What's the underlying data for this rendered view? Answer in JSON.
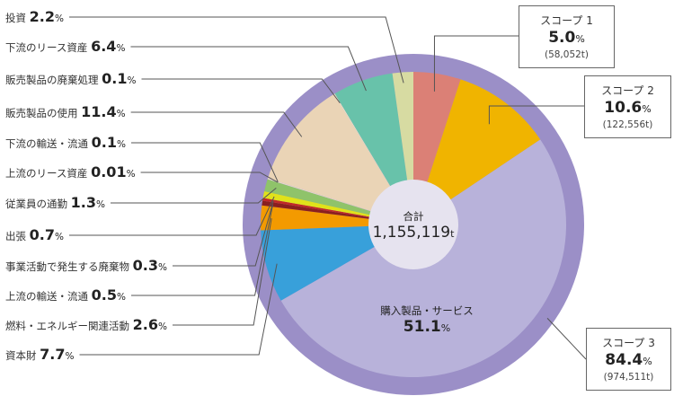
{
  "chart_data": {
    "type": "pie",
    "total": {
      "label": "合計",
      "value": "1,155,119",
      "unit": "t"
    },
    "scopes": [
      {
        "id": "scope1",
        "title": "スコープ 1",
        "percent": "5.0",
        "unit": "%",
        "amount": "(58,052t)",
        "value": 5.0,
        "color": "#db8076"
      },
      {
        "id": "scope2",
        "title": "スコープ 2",
        "percent": "10.6",
        "unit": "%",
        "amount": "(122,556t)",
        "value": 10.6,
        "color": "#f0b400"
      },
      {
        "id": "scope3",
        "title": "スコープ 3",
        "percent": "84.4",
        "unit": "%",
        "amount": "(974,511t)",
        "value": 84.4,
        "color": "#9b8fc7"
      }
    ],
    "scope3_categories": [
      {
        "name": "投資",
        "percent": "2.2",
        "unit": "%",
        "value": 2.2,
        "color": "#d7dba2"
      },
      {
        "name": "下流のリース資産",
        "percent": "6.4",
        "unit": "%",
        "value": 6.4,
        "color": "#68c2aa"
      },
      {
        "name": "販売製品の廃棄処理",
        "percent": "0.1",
        "unit": "%",
        "value": 0.1,
        "color": "#f3e3c8"
      },
      {
        "name": "販売製品の使用",
        "percent": "11.4",
        "unit": "%",
        "value": 11.4,
        "color": "#ead4b6"
      },
      {
        "name": "下流の輸送・流通",
        "percent": "0.1",
        "unit": "%",
        "value": 0.1,
        "color": "#e8d9d0"
      },
      {
        "name": "上流のリース資産",
        "percent": "0.01",
        "unit": "%",
        "value": 0.01,
        "color": "#cfcfcf"
      },
      {
        "name": "従業員の通勤",
        "percent": "1.3",
        "unit": "%",
        "value": 1.3,
        "color": "#8fc36a"
      },
      {
        "name": "出張",
        "percent": "0.7",
        "unit": "%",
        "value": 0.7,
        "color": "#e0e21a"
      },
      {
        "name": "事業活動で発生する廃棄物",
        "percent": "0.3",
        "unit": "%",
        "value": 0.3,
        "color": "#c02828"
      },
      {
        "name": "上流の輸送・流通",
        "percent": "0.5",
        "unit": "%",
        "value": 0.5,
        "color": "#8a1f1f"
      },
      {
        "name": "燃料・エネルギー関連活動",
        "percent": "2.6",
        "unit": "%",
        "value": 2.6,
        "color": "#f39a00"
      },
      {
        "name": "資本財",
        "percent": "7.7",
        "unit": "%",
        "value": 7.7,
        "color": "#38a0da"
      },
      {
        "name": "購入製品・サービス",
        "percent": "51.1",
        "unit": "%",
        "value": 51.1,
        "color": "#b8b2da"
      }
    ]
  }
}
